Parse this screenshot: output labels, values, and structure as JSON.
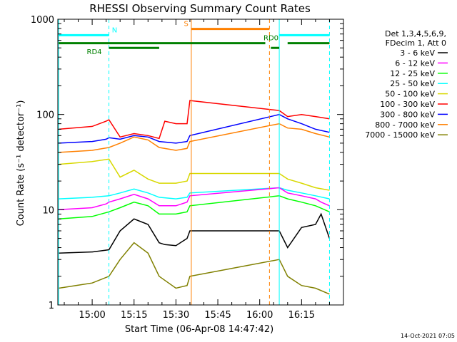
{
  "chart_data": {
    "type": "line",
    "title": "RHESSI Observing Summary Count Rates",
    "xlabel": "Start Time (06-Apr-08 14:47:42)",
    "ylabel": "Count Rate (s⁻¹ detector⁻¹)",
    "yscale": "log",
    "ylim": [
      1,
      1000
    ],
    "xlim": [
      "14:47:42",
      "16:30:00"
    ],
    "x_ticks": [
      "15:00",
      "15:15",
      "15:30",
      "15:45",
      "16:00",
      "16:15"
    ],
    "y_ticks": [
      "1",
      "10",
      "100",
      "1000"
    ],
    "grid": false,
    "legend": {
      "position": "right",
      "header": [
        "Det 1,3,4,5,6,9,",
        "FDecim 1, Att 0"
      ],
      "entries": [
        {
          "name": "3 - 6 keV",
          "color": "#000000"
        },
        {
          "name": "6 - 12 keV",
          "color": "#ff00ff"
        },
        {
          "name": "12 - 25 keV",
          "color": "#00ff00"
        },
        {
          "name": "25 - 50 keV",
          "color": "#00ffff"
        },
        {
          "name": "50 - 100 keV",
          "color": "#d8d800"
        },
        {
          "name": "100 - 300 keV",
          "color": "#ff0000"
        },
        {
          "name": "300 - 800 keV",
          "color": "#0000ff"
        },
        {
          "name": "800 - 7000 keV",
          "color": "#ff8000"
        },
        {
          "name": "7000 - 15000 keV",
          "color": "#808000"
        }
      ]
    },
    "series": [
      {
        "name": "3 - 6 keV",
        "x": [
          "14:48",
          "15:00",
          "15:03",
          "15:06",
          "15:10",
          "15:15",
          "15:20",
          "15:24",
          "15:26",
          "15:30",
          "15:34",
          "15:35",
          "16:07",
          "16:10",
          "16:15",
          "16:20",
          "16:22",
          "16:25"
        ],
        "y": [
          3.5,
          3.6,
          3.7,
          3.8,
          6,
          8,
          7,
          4.5,
          4.3,
          4.2,
          5,
          6,
          6,
          4,
          6.5,
          7,
          9,
          5
        ]
      },
      {
        "name": "6 - 12 keV",
        "x": [
          "14:48",
          "15:00",
          "15:05",
          "15:06",
          "15:10",
          "15:15",
          "15:20",
          "15:24",
          "15:30",
          "15:34",
          "15:35",
          "16:07",
          "16:10",
          "16:15",
          "16:20",
          "16:22",
          "16:25"
        ],
        "y": [
          10,
          10.5,
          11.5,
          12,
          13,
          14.5,
          13,
          11,
          11,
          12,
          14,
          17,
          15,
          14,
          13,
          12,
          11
        ]
      },
      {
        "name": "12 - 25 keV",
        "x": [
          "14:48",
          "15:00",
          "15:06",
          "15:10",
          "15:15",
          "15:20",
          "15:24",
          "15:30",
          "15:34",
          "15:35",
          "16:07",
          "16:10",
          "16:15",
          "16:20",
          "16:25"
        ],
        "y": [
          8,
          8.5,
          9.5,
          10.5,
          12,
          11,
          9,
          9,
          9.5,
          11,
          14,
          13,
          12,
          11,
          9.5
        ]
      },
      {
        "name": "25 - 50 keV",
        "x": [
          "14:48",
          "15:00",
          "15:06",
          "15:10",
          "15:15",
          "15:20",
          "15:24",
          "15:30",
          "15:34",
          "15:35",
          "16:07",
          "16:10",
          "16:15",
          "16:20",
          "16:25"
        ],
        "y": [
          13,
          13.5,
          14,
          15,
          16.5,
          15,
          13.5,
          13,
          13.5,
          15,
          17,
          16,
          15,
          14,
          13
        ]
      },
      {
        "name": "50 - 100 keV",
        "x": [
          "14:48",
          "15:00",
          "15:06",
          "15:10",
          "15:15",
          "15:20",
          "15:24",
          "15:30",
          "15:34",
          "15:35",
          "16:07",
          "16:10",
          "16:15",
          "16:20",
          "16:25"
        ],
        "y": [
          30,
          32,
          34,
          22,
          26,
          21,
          19,
          19,
          20,
          24,
          24,
          21,
          19,
          17,
          16
        ]
      },
      {
        "name": "100 - 300 keV",
        "x": [
          "14:48",
          "15:00",
          "15:05",
          "15:06",
          "15:10",
          "15:15",
          "15:20",
          "15:24",
          "15:26",
          "15:30",
          "15:34",
          "15:35",
          "16:07",
          "16:10",
          "16:15",
          "16:20",
          "16:25"
        ],
        "y": [
          70,
          75,
          85,
          88,
          58,
          63,
          60,
          56,
          85,
          80,
          80,
          140,
          110,
          95,
          100,
          95,
          90
        ]
      },
      {
        "name": "300 - 800 keV",
        "x": [
          "14:48",
          "15:00",
          "15:05",
          "15:06",
          "15:10",
          "15:15",
          "15:20",
          "15:24",
          "15:30",
          "15:34",
          "15:35",
          "16:07",
          "16:10",
          "16:15",
          "16:20",
          "16:25"
        ],
        "y": [
          50,
          52,
          55,
          57,
          55,
          60,
          58,
          52,
          50,
          52,
          60,
          100,
          90,
          80,
          70,
          65
        ]
      },
      {
        "name": "800 - 7000 keV",
        "x": [
          "14:48",
          "15:00",
          "15:06",
          "15:10",
          "15:15",
          "15:20",
          "15:24",
          "15:30",
          "15:34",
          "15:35",
          "16:07",
          "16:10",
          "16:15",
          "16:20",
          "16:25"
        ],
        "y": [
          40,
          42,
          45,
          50,
          58,
          54,
          45,
          42,
          44,
          52,
          80,
          72,
          70,
          63,
          58
        ]
      },
      {
        "name": "7000 - 15000 keV",
        "x": [
          "14:48",
          "15:00",
          "15:06",
          "15:10",
          "15:15",
          "15:20",
          "15:24",
          "15:30",
          "15:34",
          "15:35",
          "16:07",
          "16:10",
          "16:15",
          "16:20",
          "16:25"
        ],
        "y": [
          1.5,
          1.7,
          2,
          3,
          4.5,
          3.5,
          2,
          1.5,
          1.6,
          2,
          3,
          2,
          1.6,
          1.5,
          1.3
        ]
      }
    ],
    "vertical_lines": [
      {
        "x": "14:48",
        "color": "#00ffff",
        "style": "solid"
      },
      {
        "x": "15:06",
        "color": "#00ffff",
        "style": "dashed"
      },
      {
        "x": "15:35:30",
        "color": "#ff8000",
        "style": "solid"
      },
      {
        "x": "16:03:30",
        "color": "#ff8000",
        "style": "dashed"
      },
      {
        "x": "16:07",
        "color": "#00ffff",
        "style": "solid"
      },
      {
        "x": "16:25",
        "color": "#00ffff",
        "style": "dashed"
      }
    ],
    "flag_bars": [
      {
        "label": "N",
        "color": "#00ffff",
        "y": 680,
        "intervals": [
          [
            "14:48",
            "15:06"
          ],
          [
            "16:07",
            "16:25"
          ]
        ]
      },
      {
        "label": "S",
        "color": "#ff8000",
        "y": 790,
        "intervals": [
          [
            "15:35:30",
            "16:03:30"
          ]
        ]
      },
      {
        "label": "RD0",
        "color": "#008000",
        "y": 560,
        "intervals": [
          [
            "14:48",
            "16:02"
          ],
          [
            "16:10",
            "16:25"
          ]
        ]
      },
      {
        "label": "RD4",
        "color": "#008000",
        "y": 500,
        "intervals": [
          [
            "15:06",
            "15:24"
          ],
          [
            "16:04",
            "16:07"
          ]
        ]
      }
    ]
  },
  "footer_date": "14-Oct-2021 07:05"
}
